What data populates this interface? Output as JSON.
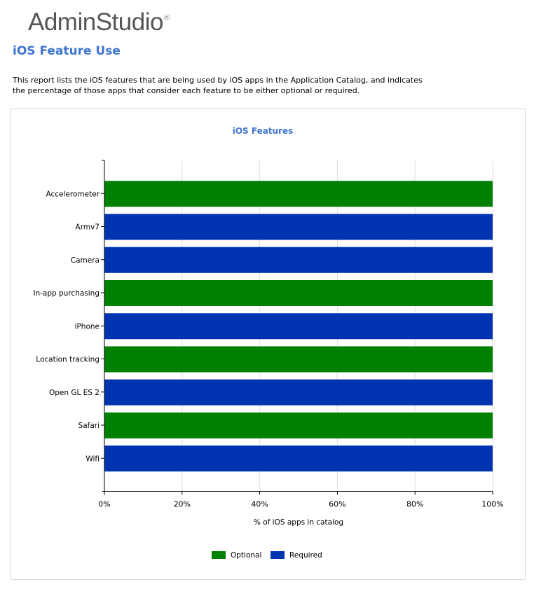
{
  "logo": {
    "text": "AdminStudio",
    "mark": "®"
  },
  "page": {
    "title": "iOS Feature Use",
    "description": "This report lists the iOS features that are being used by iOS apps in the Application Catalog, and indicates the percentage of those apps  that consider each feature to be either optional or required."
  },
  "chart_data": {
    "type": "bar",
    "orientation": "horizontal",
    "stacked": true,
    "title": "iOS Features",
    "xlabel": "% of iOS apps in catalog",
    "ylabel": "",
    "xlim": [
      0,
      100
    ],
    "xticks": [
      "0%",
      "20%",
      "40%",
      "60%",
      "80%",
      "100%"
    ],
    "grid": true,
    "legend_position": "bottom",
    "categories": [
      "Accelerometer",
      "Armv7",
      "Camera",
      "In-app purchasing",
      "iPhone",
      "Location tracking",
      "Open GL ES 2",
      "Safari",
      "Wifi"
    ],
    "series": [
      {
        "name": "Optional",
        "color": "#008000",
        "values": [
          100,
          0,
          0,
          100,
          0,
          100,
          0,
          100,
          0
        ]
      },
      {
        "name": "Required",
        "color": "#0033b0",
        "values": [
          0,
          100,
          100,
          0,
          100,
          0,
          100,
          0,
          100
        ]
      }
    ]
  }
}
